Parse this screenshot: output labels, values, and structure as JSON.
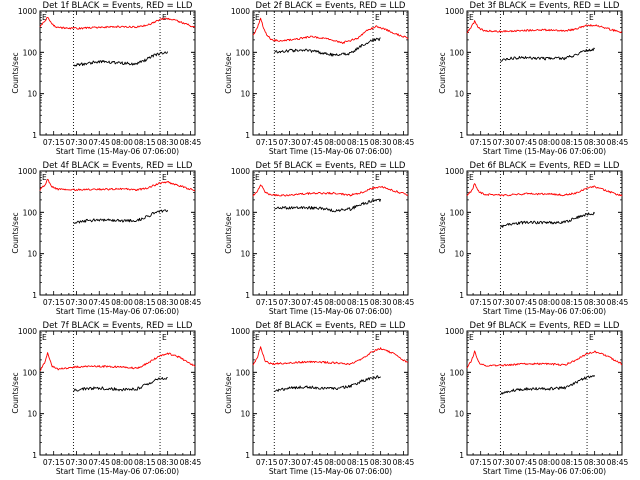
{
  "chart_data": [
    {
      "type": "line",
      "title": "Det 1f BLACK = Events, RED = LLD",
      "xlabel": "Start Time (15-May-06 07:06:00)",
      "ylabel": "Counts/sec",
      "y_scale": "log",
      "ylim": [
        1,
        1000
      ],
      "xlim": [
        "07:06",
        "08:48"
      ],
      "x_ticks": [
        "07:15",
        "07:30",
        "07:45",
        "08:00",
        "08:15",
        "08:30",
        "08:45"
      ],
      "y_ticks": [
        "1",
        "10",
        "100",
        "1000"
      ],
      "marker_lines": [
        "07:28",
        "08:25"
      ],
      "marker_label": "E",
      "series": [
        {
          "color": "#ff0000",
          "x": [
            "07:06",
            "07:09",
            "07:11",
            "07:13",
            "07:16",
            "07:20",
            "07:30",
            "07:45",
            "08:00",
            "08:10",
            "08:17",
            "08:22",
            "08:27",
            "08:33",
            "08:40",
            "08:48"
          ],
          "values": [
            420,
            560,
            700,
            540,
            410,
            390,
            380,
            400,
            420,
            410,
            460,
            560,
            650,
            620,
            520,
            400
          ]
        },
        {
          "color": "#000000",
          "x": [
            "07:28",
            "07:34",
            "07:45",
            "08:00",
            "08:08",
            "08:15",
            "08:20",
            "08:25",
            "08:30"
          ],
          "values": [
            48,
            52,
            60,
            55,
            52,
            64,
            82,
            96,
            97
          ]
        }
      ]
    },
    {
      "type": "line",
      "title": "Det 2f BLACK = Events, RED = LLD",
      "xlabel": "Start Time (15-May-06 07:06:00)",
      "ylabel": "Counts/sec",
      "y_scale": "log",
      "ylim": [
        1,
        1000
      ],
      "xlim": [
        "07:06",
        "08:48"
      ],
      "x_ticks": [
        "07:15",
        "07:30",
        "07:45",
        "08:00",
        "08:15",
        "08:30",
        "08:45"
      ],
      "y_ticks": [
        "1",
        "10",
        "100",
        "1000"
      ],
      "marker_lines": [
        "07:20",
        "08:25"
      ],
      "marker_label": "E",
      "series": [
        {
          "color": "#ff0000",
          "x": [
            "07:06",
            "07:09",
            "07:11",
            "07:14",
            "07:18",
            "07:25",
            "07:35",
            "07:45",
            "07:55",
            "08:05",
            "08:15",
            "08:20",
            "08:27",
            "08:33",
            "08:40",
            "08:48"
          ],
          "values": [
            250,
            420,
            650,
            300,
            200,
            190,
            210,
            240,
            210,
            170,
            220,
            320,
            420,
            360,
            280,
            220
          ]
        },
        {
          "color": "#000000",
          "x": [
            "07:20",
            "07:30",
            "07:40",
            "07:50",
            "08:00",
            "08:10",
            "08:18",
            "08:25",
            "08:30"
          ],
          "values": [
            100,
            110,
            115,
            100,
            85,
            95,
            150,
            200,
            210
          ]
        }
      ]
    },
    {
      "type": "line",
      "title": "Det 3f BLACK = Events, RED = LLD",
      "xlabel": "Start Time (15-May-06 07:06:00)",
      "ylabel": "Counts/sec",
      "y_scale": "log",
      "ylim": [
        1,
        1000
      ],
      "xlim": [
        "07:06",
        "08:48"
      ],
      "x_ticks": [
        "07:15",
        "07:30",
        "07:45",
        "08:00",
        "08:15",
        "08:30",
        "08:45"
      ],
      "y_ticks": [
        "1",
        "10",
        "100",
        "1000"
      ],
      "marker_lines": [
        "07:28",
        "08:25"
      ],
      "marker_label": "E",
      "series": [
        {
          "color": "#ff0000",
          "x": [
            "07:06",
            "07:09",
            "07:11",
            "07:14",
            "07:18",
            "07:30",
            "07:45",
            "08:00",
            "08:10",
            "08:17",
            "08:24",
            "08:30",
            "08:38",
            "08:48"
          ],
          "values": [
            300,
            420,
            560,
            380,
            330,
            320,
            340,
            350,
            330,
            360,
            440,
            460,
            380,
            300
          ]
        },
        {
          "color": "#000000",
          "x": [
            "07:28",
            "07:35",
            "07:45",
            "08:00",
            "08:10",
            "08:17",
            "08:22",
            "08:27",
            "08:30"
          ],
          "values": [
            65,
            72,
            75,
            70,
            72,
            85,
            105,
            115,
            118
          ]
        }
      ]
    },
    {
      "type": "line",
      "title": "Det 4f BLACK = Events, RED = LLD",
      "xlabel": "Start Time (15-May-06 07:06:00)",
      "ylabel": "Counts/sec",
      "y_scale": "log",
      "ylim": [
        1,
        1000
      ],
      "xlim": [
        "07:06",
        "08:48"
      ],
      "x_ticks": [
        "07:15",
        "07:30",
        "07:45",
        "08:00",
        "08:15",
        "08:30",
        "08:45"
      ],
      "y_ticks": [
        "1",
        "10",
        "100",
        "1000"
      ],
      "marker_lines": [
        "07:28",
        "08:25"
      ],
      "marker_label": "E",
      "series": [
        {
          "color": "#ff0000",
          "x": [
            "07:06",
            "07:09",
            "07:11",
            "07:14",
            "07:18",
            "07:30",
            "07:45",
            "08:00",
            "08:10",
            "08:17",
            "08:24",
            "08:30",
            "08:38",
            "08:48"
          ],
          "values": [
            350,
            450,
            620,
            420,
            360,
            350,
            360,
            370,
            350,
            390,
            500,
            540,
            440,
            330
          ]
        },
        {
          "color": "#000000",
          "x": [
            "07:28",
            "07:35",
            "07:45",
            "08:00",
            "08:10",
            "08:17",
            "08:22",
            "08:27",
            "08:30"
          ],
          "values": [
            55,
            62,
            66,
            62,
            64,
            80,
            100,
            110,
            112
          ]
        }
      ]
    },
    {
      "type": "line",
      "title": "Det 5f BLACK = Events, RED = LLD",
      "xlabel": "Start Time (15-May-06 07:06:00)",
      "ylabel": "Counts/sec",
      "y_scale": "log",
      "ylim": [
        1,
        1000
      ],
      "xlim": [
        "07:06",
        "08:48"
      ],
      "x_ticks": [
        "07:15",
        "07:30",
        "07:45",
        "08:00",
        "08:15",
        "08:30",
        "08:45"
      ],
      "y_ticks": [
        "1",
        "10",
        "100",
        "1000"
      ],
      "marker_lines": [
        "07:20",
        "08:25"
      ],
      "marker_label": "E",
      "series": [
        {
          "color": "#ff0000",
          "x": [
            "07:06",
            "07:09",
            "07:11",
            "07:14",
            "07:18",
            "07:30",
            "07:45",
            "08:00",
            "08:10",
            "08:17",
            "08:24",
            "08:30",
            "08:38",
            "08:48"
          ],
          "values": [
            250,
            320,
            480,
            300,
            260,
            260,
            290,
            290,
            260,
            300,
            380,
            420,
            340,
            260
          ]
        },
        {
          "color": "#000000",
          "x": [
            "07:20",
            "07:30",
            "07:40",
            "07:50",
            "08:00",
            "08:10",
            "08:18",
            "08:25",
            "08:30"
          ],
          "values": [
            125,
            130,
            130,
            125,
            110,
            120,
            160,
            190,
            195
          ]
        }
      ]
    },
    {
      "type": "line",
      "title": "Det 6f BLACK = Events, RED = LLD",
      "xlabel": "Start Time (15-May-06 07:06:00)",
      "ylabel": "Counts/sec",
      "y_scale": "log",
      "ylim": [
        1,
        1000
      ],
      "xlim": [
        "07:06",
        "08:48"
      ],
      "x_ticks": [
        "07:15",
        "07:30",
        "07:45",
        "08:00",
        "08:15",
        "08:30",
        "08:45"
      ],
      "y_ticks": [
        "1",
        "10",
        "100",
        "1000"
      ],
      "marker_lines": [
        "07:28",
        "08:25"
      ],
      "marker_label": "E",
      "series": [
        {
          "color": "#ff0000",
          "x": [
            "07:06",
            "07:09",
            "07:11",
            "07:14",
            "07:18",
            "07:30",
            "07:45",
            "08:00",
            "08:10",
            "08:17",
            "08:24",
            "08:30",
            "08:38",
            "08:48"
          ],
          "values": [
            250,
            330,
            480,
            310,
            270,
            260,
            280,
            280,
            260,
            290,
            370,
            420,
            330,
            250
          ]
        },
        {
          "color": "#000000",
          "x": [
            "07:28",
            "07:35",
            "07:45",
            "08:00",
            "08:10",
            "08:17",
            "08:22",
            "08:27",
            "08:30"
          ],
          "values": [
            45,
            52,
            58,
            56,
            58,
            70,
            85,
            92,
            94
          ]
        }
      ]
    },
    {
      "type": "line",
      "title": "Det 7f BLACK = Events, RED = LLD",
      "xlabel": "Start Time (15-May-06 07:06:00)",
      "ylabel": "Counts/sec",
      "y_scale": "log",
      "ylim": [
        1,
        1000
      ],
      "xlim": [
        "07:06",
        "08:48"
      ],
      "x_ticks": [
        "07:15",
        "07:30",
        "07:45",
        "08:00",
        "08:15",
        "08:30",
        "08:45"
      ],
      "y_ticks": [
        "1",
        "10",
        "100",
        "1000"
      ],
      "marker_lines": [
        "07:28",
        "08:25"
      ],
      "marker_label": "E",
      "series": [
        {
          "color": "#ff0000",
          "x": [
            "07:06",
            "07:09",
            "07:11",
            "07:14",
            "07:18",
            "07:30",
            "07:45",
            "08:00",
            "08:10",
            "08:17",
            "08:24",
            "08:30",
            "08:38",
            "08:48"
          ],
          "values": [
            110,
            170,
            290,
            140,
            120,
            135,
            140,
            135,
            125,
            170,
            240,
            290,
            230,
            140
          ]
        },
        {
          "color": "#000000",
          "x": [
            "07:28",
            "07:35",
            "07:45",
            "08:00",
            "08:10",
            "08:17",
            "08:22",
            "08:27",
            "08:30"
          ],
          "values": [
            36,
            40,
            42,
            38,
            40,
            52,
            64,
            72,
            74
          ]
        }
      ]
    },
    {
      "type": "line",
      "title": "Det 8f BLACK = Events, RED = LLD",
      "xlabel": "Start Time (15-May-06 07:06:00)",
      "ylabel": "Counts/sec",
      "y_scale": "log",
      "ylim": [
        1,
        1000
      ],
      "xlim": [
        "07:06",
        "08:48"
      ],
      "x_ticks": [
        "07:15",
        "07:30",
        "07:45",
        "08:00",
        "08:15",
        "08:30",
        "08:45"
      ],
      "y_ticks": [
        "1",
        "10",
        "100",
        "1000"
      ],
      "marker_lines": [
        "07:20",
        "08:25"
      ],
      "marker_label": "E",
      "series": [
        {
          "color": "#ff0000",
          "x": [
            "07:06",
            "07:09",
            "07:11",
            "07:14",
            "07:18",
            "07:30",
            "07:45",
            "08:00",
            "08:10",
            "08:17",
            "08:24",
            "08:30",
            "08:38",
            "08:48"
          ],
          "values": [
            150,
            240,
            420,
            190,
            160,
            170,
            180,
            170,
            160,
            200,
            310,
            380,
            290,
            170
          ]
        },
        {
          "color": "#000000",
          "x": [
            "07:20",
            "07:30",
            "07:40",
            "07:50",
            "08:00",
            "08:10",
            "08:18",
            "08:25",
            "08:30"
          ],
          "values": [
            36,
            42,
            44,
            42,
            40,
            46,
            62,
            75,
            78
          ]
        }
      ]
    },
    {
      "type": "line",
      "title": "Det 9f BLACK = Events, RED = LLD",
      "xlabel": "Start Time (15-May-06 07:06:00)",
      "ylabel": "Counts/sec",
      "y_scale": "log",
      "ylim": [
        1,
        1000
      ],
      "xlim": [
        "07:06",
        "08:48"
      ],
      "x_ticks": [
        "07:15",
        "07:30",
        "07:45",
        "08:00",
        "08:15",
        "08:30",
        "08:45"
      ],
      "y_ticks": [
        "1",
        "10",
        "100",
        "1000"
      ],
      "marker_lines": [
        "07:28",
        "08:25"
      ],
      "marker_label": "E",
      "series": [
        {
          "color": "#ff0000",
          "x": [
            "07:06",
            "07:09",
            "07:11",
            "07:14",
            "07:18",
            "07:30",
            "07:45",
            "08:00",
            "08:10",
            "08:17",
            "08:24",
            "08:30",
            "08:38",
            "08:48"
          ],
          "values": [
            130,
            190,
            320,
            170,
            145,
            150,
            160,
            160,
            150,
            190,
            270,
            320,
            250,
            160
          ]
        },
        {
          "color": "#000000",
          "x": [
            "07:28",
            "07:35",
            "07:45",
            "08:00",
            "08:10",
            "08:17",
            "08:22",
            "08:27",
            "08:30"
          ],
          "values": [
            30,
            36,
            40,
            40,
            42,
            55,
            70,
            78,
            80
          ]
        }
      ]
    }
  ]
}
